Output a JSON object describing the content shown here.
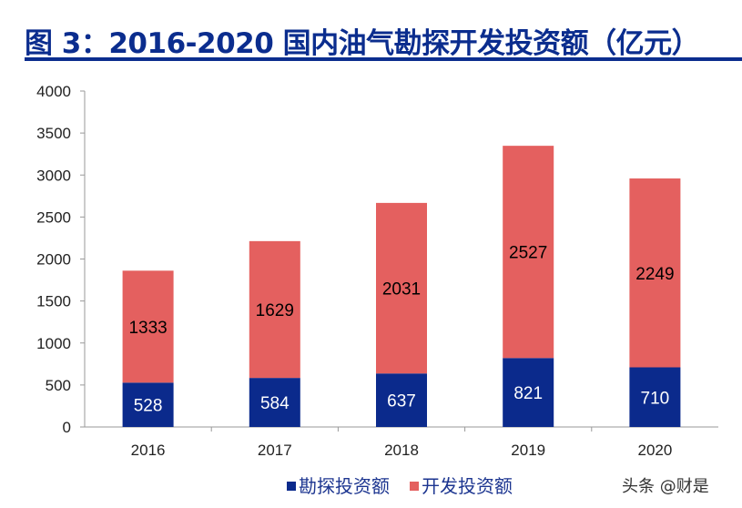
{
  "title": "图 3：2016-2020 国内油气勘探开发投资额（亿元）",
  "watermark": "头条 @财是",
  "chart_data": {
    "type": "bar",
    "stacked": true,
    "categories": [
      "2016",
      "2017",
      "2018",
      "2019",
      "2020"
    ],
    "series": [
      {
        "name": "勘探投资额",
        "values": [
          528,
          584,
          637,
          821,
          710
        ],
        "color": "#0b2a8c",
        "label_color": "#ffffff"
      },
      {
        "name": "开发投资额",
        "values": [
          1333,
          1629,
          2031,
          2527,
          2249
        ],
        "color": "#e4605f",
        "label_color": "#000000"
      }
    ],
    "ylim": [
      0,
      4000
    ],
    "yticks": [
      0,
      500,
      1000,
      1500,
      2000,
      2500,
      3000,
      3500,
      4000
    ],
    "grid": false,
    "legend": "bottom"
  }
}
